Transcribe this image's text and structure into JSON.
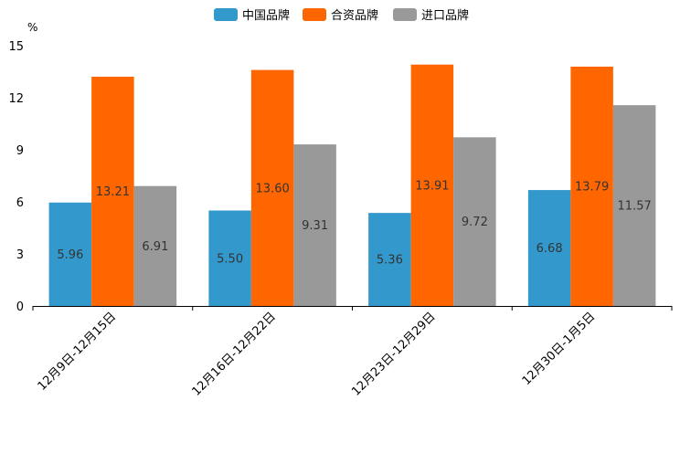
{
  "chart_data": {
    "type": "bar",
    "title": "",
    "unit": "%",
    "xlabel": "",
    "ylabel": "%",
    "ylim": [
      0,
      15
    ],
    "yticks": [
      0,
      3,
      6,
      9,
      12,
      15
    ],
    "grid": false,
    "legend_position": "top-center",
    "categories": [
      "12月9日-12月15日",
      "12月16日-12月22日",
      "12月23日-12月29日",
      "12月30日-1月5日"
    ],
    "series": [
      {
        "name": "中国品牌",
        "color": "#3399cc",
        "values": [
          5.96,
          5.5,
          5.36,
          6.68
        ],
        "labels": [
          "5.96",
          "5.50",
          "5.36",
          "6.68"
        ]
      },
      {
        "name": "合资品牌",
        "color": "#ff6600",
        "values": [
          13.21,
          13.6,
          13.91,
          13.79
        ],
        "labels": [
          "13.21",
          "13.60",
          "13.91",
          "13.79"
        ]
      },
      {
        "name": "进口品牌",
        "color": "#999999",
        "values": [
          6.91,
          9.31,
          9.72,
          11.57
        ],
        "labels": [
          "6.91",
          "9.31",
          "9.72",
          "11.57"
        ]
      }
    ]
  }
}
